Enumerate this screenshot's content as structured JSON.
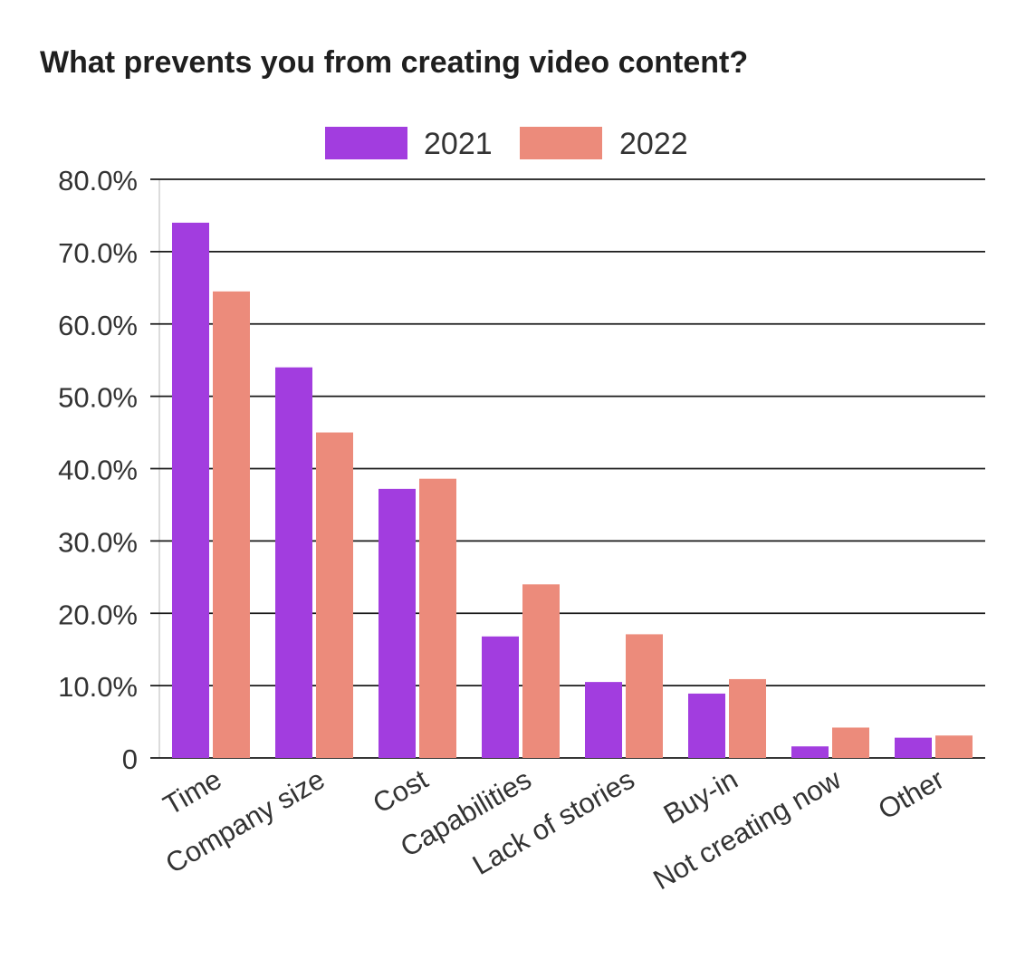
{
  "chart_data": {
    "type": "bar",
    "title": "What prevents you from creating video content?",
    "xlabel": "",
    "ylabel": "",
    "categories": [
      "Time",
      "Company size",
      "Cost",
      "Capabilities",
      "Lack of stories",
      "Buy-in",
      "Not creating now",
      "Other"
    ],
    "series": [
      {
        "name": "2021",
        "color": "#a23ddf",
        "values": [
          74.0,
          54.0,
          37.2,
          16.8,
          10.5,
          8.9,
          1.6,
          2.8
        ]
      },
      {
        "name": "2022",
        "color": "#ec8b7b",
        "values": [
          64.5,
          45.0,
          38.6,
          24.0,
          17.1,
          10.9,
          4.2,
          3.1
        ]
      }
    ],
    "ylim": [
      0,
      80
    ],
    "y_ticks": [
      {
        "value": 0,
        "label": "0"
      },
      {
        "value": 10,
        "label": "10.0%"
      },
      {
        "value": 20,
        "label": "20.0%"
      },
      {
        "value": 30,
        "label": "30.0%"
      },
      {
        "value": 40,
        "label": "40.0%"
      },
      {
        "value": 50,
        "label": "50.0%"
      },
      {
        "value": 60,
        "label": "60.0%"
      },
      {
        "value": 70,
        "label": "70.0%"
      },
      {
        "value": 80,
        "label": "80.0%"
      }
    ],
    "grid": true,
    "legend_position": "top-center",
    "gridline_color": "#1a1a1a",
    "tick_label_color": "#333333"
  }
}
